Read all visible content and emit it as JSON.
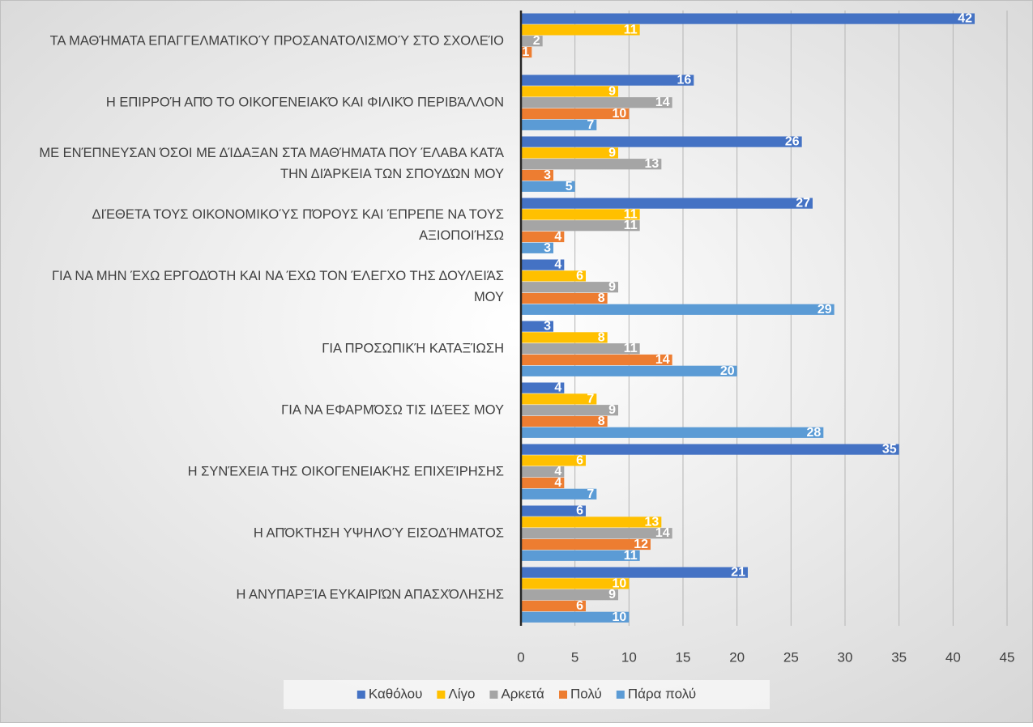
{
  "chart_data": {
    "type": "bar",
    "orientation": "horizontal",
    "categories": [
      "ΤΑ ΜΑΘΉΜΑΤΑ ΕΠΑΓΓΕΛΜΑΤΙΚΟΎ ΠΡΟΣΑΝΑΤΟΛΙΣΜΟΎ ΣΤΟ ΣΧΟΛΕΊΟ",
      "Η ΕΠΙΡΡΟΉ ΑΠΌ ΤΟ ΟΙΚΟΓΕΝΕΙΑΚΌ ΚΑΙ ΦΙΛΙΚΌ ΠΕΡΙΒΆΛΛΟΝ",
      "ΜΕ ΕΝΈΠΝΕΥΣΑΝ ΌΣΟΙ ΜΕ ΔΊΔΑΞΑΝ ΣΤΑ ΜΑΘΉΜΑΤΑ ΠΟΥ ΈΛΑΒΑ ΚΑΤΆ ΤΗΝ ΔΙΆΡΚΕΙΑ ΤΩΝ ΣΠΟΥΔΏΝ ΜΟΥ",
      "ΔΙΈΘΕΤΑ ΤΟΥΣ ΟΙΚΟΝΟΜΙΚΟΎΣ ΠΌΡΟΥΣ ΚΑΙ ΈΠΡΕΠΕ ΝΑ ΤΟΥΣ ΑΞΙΟΠΟΙΉΣΩ",
      "ΓΙΑ ΝΑ ΜΗΝ ΈΧΩ ΕΡΓΟΔΌΤΗ ΚΑΙ ΝΑ ΈΧΩ ΤΟΝ ΈΛΕΓΧΟ ΤΗΣ ΔΟΥΛΕΙΆΣ ΜΟΥ",
      "ΓΙΑ ΠΡΟΣΩΠΙΚΉ ΚΑΤΑΞΊΩΣΗ",
      "ΓΙΑ ΝΑ ΕΦΑΡΜΌΣΩ ΤΙΣ ΙΔΈΕΣ ΜΟΥ",
      "Η ΣΥΝΈΧΕΙΑ ΤΗΣ ΟΙΚΟΓΕΝΕΙΑΚΉΣ ΕΠΙΧΕΊΡΗΣΗΣ",
      "Η ΑΠΌΚΤΗΣΗ ΥΨΗΛΟΎ ΕΙΣΟΔΉΜΑΤΟΣ",
      "Η ΑΝΥΠΑΡΞΊΑ ΕΥΚΑΙΡΙΏΝ ΑΠΑΣΧΌΛΗΣΗΣ"
    ],
    "series": [
      {
        "name": "Καθόλου",
        "color": "#4472c4",
        "values": [
          42,
          16,
          26,
          27,
          4,
          3,
          4,
          35,
          6,
          21
        ]
      },
      {
        "name": "Λίγο",
        "color": "#ffc000",
        "values": [
          11,
          9,
          9,
          11,
          6,
          8,
          7,
          6,
          13,
          10
        ]
      },
      {
        "name": "Αρκετά",
        "color": "#a5a5a5",
        "values": [
          2,
          14,
          13,
          11,
          9,
          11,
          9,
          4,
          14,
          9
        ]
      },
      {
        "name": "Πολύ",
        "color": "#ed7d31",
        "values": [
          1,
          10,
          3,
          4,
          8,
          14,
          8,
          4,
          12,
          6
        ]
      },
      {
        "name": "Πάρα πολύ",
        "color": "#5b9bd5",
        "values": [
          null,
          7,
          5,
          3,
          29,
          20,
          28,
          7,
          11,
          10
        ]
      }
    ],
    "xlim": [
      0,
      45
    ],
    "xticks": [
      0,
      5,
      10,
      15,
      20,
      25,
      30,
      35,
      40,
      45
    ],
    "grid": true,
    "legend": "bottom"
  }
}
